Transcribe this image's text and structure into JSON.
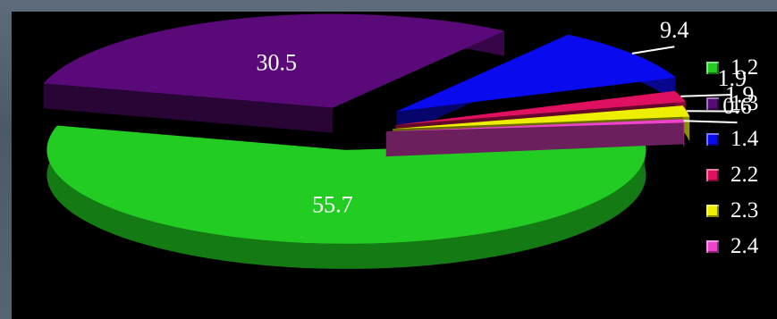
{
  "chart_data": {
    "type": "pie",
    "style": "3d-exploded",
    "legend_position": "right",
    "categories": [
      "1.2",
      "1.3",
      "1.4",
      "2.2",
      "2.3",
      "2.4"
    ],
    "values": [
      55.7,
      30.5,
      9.4,
      1.9,
      1.9,
      0.6
    ],
    "data_labels": [
      "55.7",
      "30.5",
      "9.4",
      "1.9",
      "1.9",
      "0.6"
    ],
    "colors": [
      "#22cc22",
      "#5a0a78",
      "#0a0aee",
      "#e01060",
      "#eeee00",
      "#ee44cc"
    ]
  }
}
